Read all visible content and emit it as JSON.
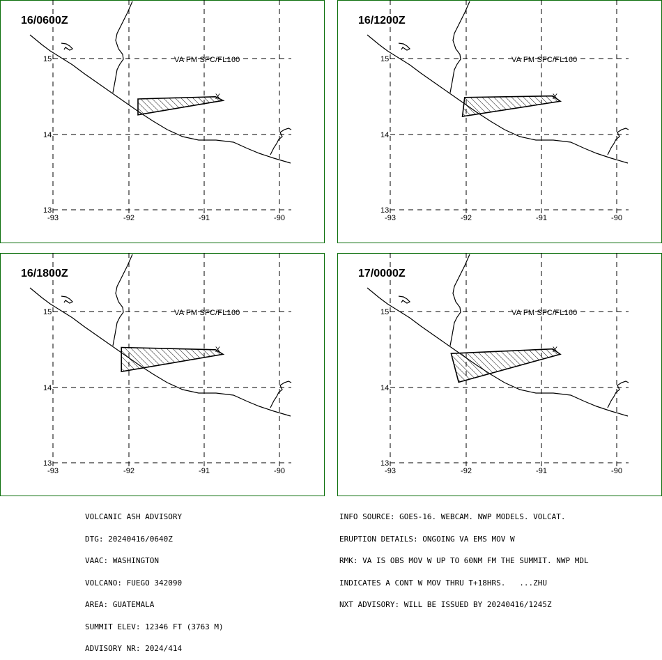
{
  "colors": {
    "frame": "#0a6e0a",
    "ink": "#000000",
    "background": "#ffffff"
  },
  "map": {
    "lon_ticks": [
      "-93",
      "-92",
      "-91",
      "-90"
    ],
    "lat_ticks": [
      "15",
      "14",
      "13"
    ],
    "level_label": "VA FM SFC/FL160",
    "volcano_marker": "X",
    "volcano_marker_icon": "volcano-x-marker",
    "ash_fill": "diagonal-hatch"
  },
  "panels": [
    {
      "time": "16/0600Z",
      "ash_polygon_lonlat": [
        [
          -91.88,
          14.47
        ],
        [
          -90.85,
          14.5
        ],
        [
          -90.75,
          14.45
        ],
        [
          -91.88,
          14.26
        ]
      ]
    },
    {
      "time": "16/1200Z",
      "ash_polygon_lonlat": [
        [
          -92.02,
          14.49
        ],
        [
          -90.85,
          14.51
        ],
        [
          -90.75,
          14.44
        ],
        [
          -92.05,
          14.24
        ]
      ]
    },
    {
      "time": "16/1800Z",
      "ash_polygon_lonlat": [
        [
          -92.1,
          14.53
        ],
        [
          -90.85,
          14.5
        ],
        [
          -90.75,
          14.44
        ],
        [
          -92.1,
          14.21
        ]
      ]
    },
    {
      "time": "17/0000Z",
      "ash_polygon_lonlat": [
        [
          -92.2,
          14.45
        ],
        [
          -90.85,
          14.51
        ],
        [
          -90.75,
          14.44
        ],
        [
          -92.1,
          14.07
        ]
      ]
    }
  ],
  "footer": {
    "left": [
      "VOLCANIC ASH ADVISORY",
      "DTG: 20240416/0640Z",
      "VAAC: WASHINGTON",
      "VOLCANO: FUEGO 342090",
      "AREA: GUATEMALA",
      "SUMMIT ELEV: 12346 FT (3763 M)",
      "ADVISORY NR: 2024/414"
    ],
    "right": [
      "INFO SOURCE: GOES-16. WEBCAM. NWP MODELS. VOLCAT.",
      "ERUPTION DETAILS: ONGOING VA EMS MOV W",
      "RMK: VA IS OBS MOV W UP TO 60NM FM THE SUMMIT. NWP MDL",
      "INDICATES A CONT W MOV THRU T+18HRS.   ...ZHU",
      "NXT ADVISORY: WILL BE ISSUED BY 20240416/1245Z"
    ]
  }
}
